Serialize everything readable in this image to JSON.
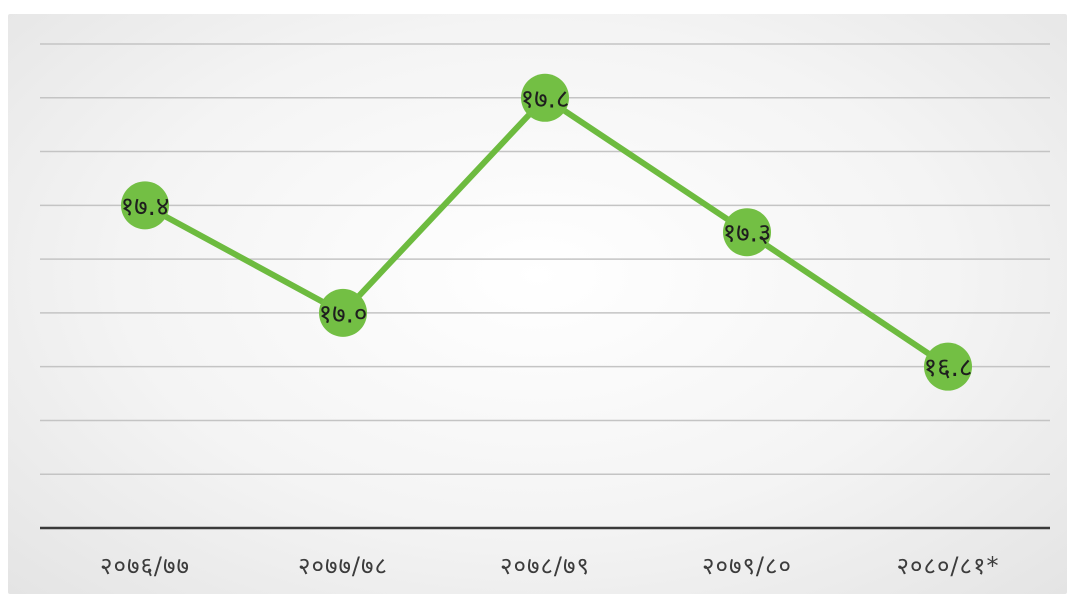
{
  "chart_data": {
    "type": "line",
    "title": "",
    "xlabel": "",
    "ylabel": "",
    "categories": [
      "२०७६/७७",
      "२०७७/७८",
      "२०७८/७९",
      "२०७९/८०",
      "२०८०/८१*"
    ],
    "series": [
      {
        "values": [
          17.4,
          17.0,
          17.8,
          17.3,
          16.8
        ],
        "labels": [
          "१७.४",
          "१७.०",
          "१७.८",
          "१७.३",
          "१६.८"
        ]
      }
    ],
    "ylim": [
      16.2,
      18.0
    ],
    "grid": true,
    "legend": "none",
    "colors": {
      "line": "#6dbb3f",
      "marker": "#73bf44",
      "grid": "#c4c4c4",
      "axis": "#3a3a3a"
    }
  }
}
